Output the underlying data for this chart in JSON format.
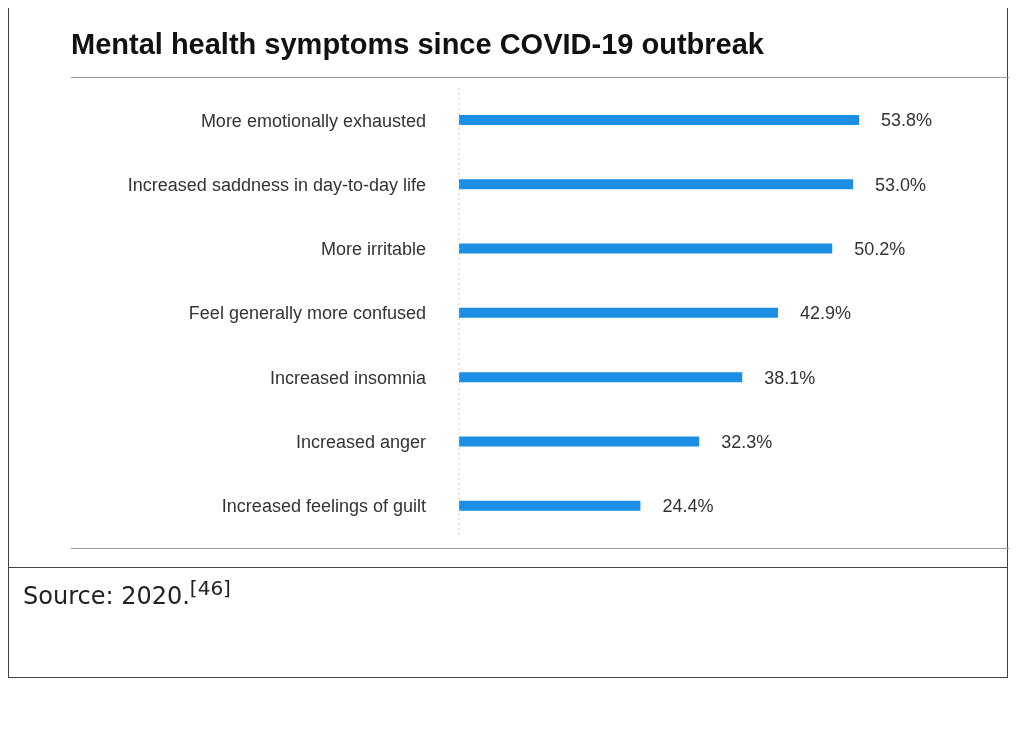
{
  "chart_data": {
    "type": "bar",
    "orientation": "horizontal",
    "title": "Mental health symptoms since COVID-19 outbreak",
    "categories": [
      "More emotionally exhausted",
      "Increased saddness in day-to-day life",
      "More irritable",
      "Feel generally more confused",
      "Increased insomnia",
      "Increased anger",
      "Increased feelings of guilt"
    ],
    "values": [
      53.8,
      53.0,
      50.2,
      42.9,
      38.1,
      32.3,
      24.4
    ],
    "value_labels": [
      "53.8%",
      "53.0%",
      "50.2%",
      "42.9%",
      "38.1%",
      "32.3%",
      "24.4%"
    ],
    "color": "#1a8fe3",
    "annotations": [
      "Source: 2020.$^{[46]}$"
    ]
  }
}
